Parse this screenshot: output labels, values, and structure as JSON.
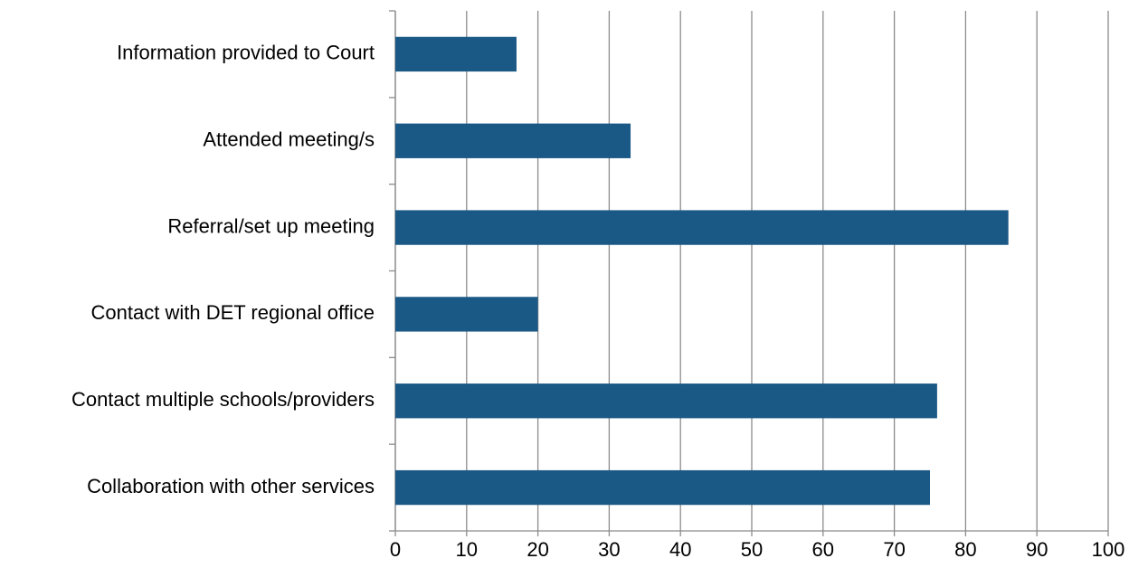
{
  "chart_data": {
    "type": "bar",
    "orientation": "horizontal",
    "categories": [
      "Information provided to Court",
      "Attended meeting/s",
      "Referral/set up meeting",
      "Contact with DET regional office",
      "Contact multiple schools/providers",
      "Collaboration with other services"
    ],
    "values": [
      17,
      33,
      86,
      20,
      76,
      75
    ],
    "color": "#1a5886",
    "xlim": [
      0,
      100
    ],
    "xticks": [
      0,
      10,
      20,
      30,
      40,
      50,
      60,
      70,
      80,
      90,
      100
    ],
    "grid": true
  }
}
